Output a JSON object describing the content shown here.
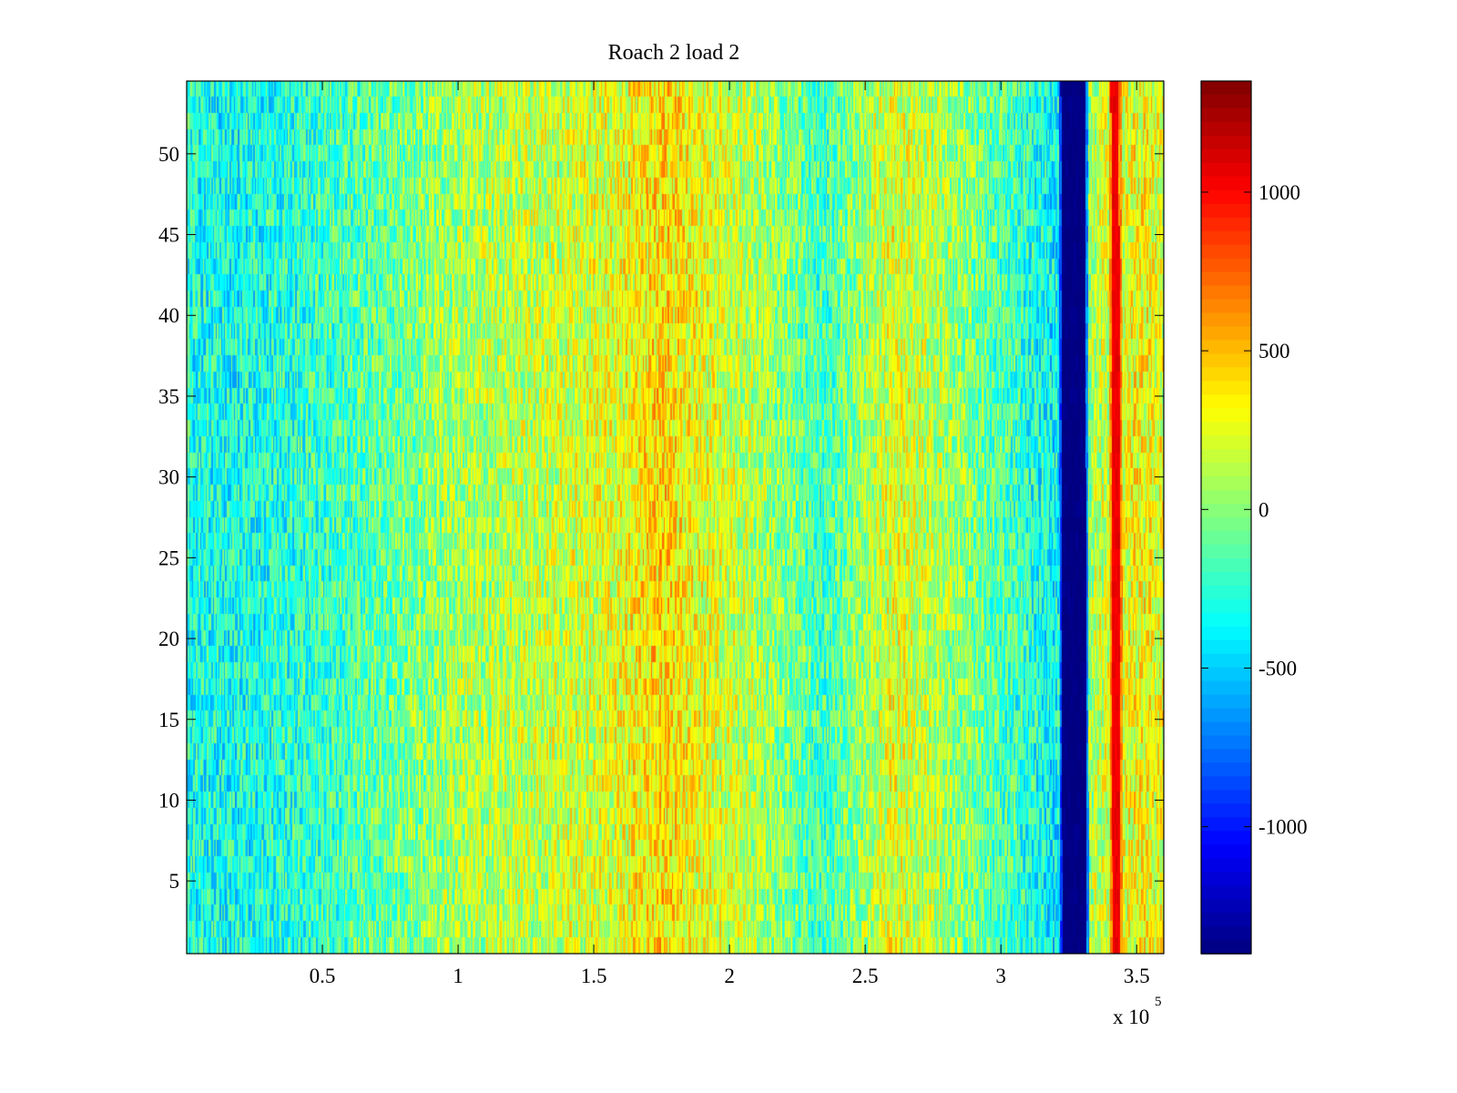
{
  "chart_data": {
    "type": "heatmap",
    "title": "Roach 2 load 2",
    "xlabel": "",
    "ylabel": "",
    "x_exponent_label": "x 10",
    "x_exponent_power": "5",
    "xlim": [
      0,
      3.6
    ],
    "ylim": [
      0.5,
      54.5
    ],
    "x_ticks": [
      0.5,
      1,
      1.5,
      2,
      2.5,
      3,
      3.5
    ],
    "x_tick_labels": [
      "0.5",
      "1",
      "1.5",
      "2",
      "2.5",
      "3",
      "3.5"
    ],
    "y_ticks": [
      5,
      10,
      15,
      20,
      25,
      30,
      35,
      40,
      45,
      50
    ],
    "y_tick_labels": [
      "5",
      "10",
      "15",
      "20",
      "25",
      "30",
      "35",
      "40",
      "45",
      "50"
    ],
    "rows": 54,
    "colormap": "jet",
    "clim": [
      -1400,
      1350
    ],
    "colorbar_ticks": [
      1000,
      500,
      0,
      -500,
      -1000
    ],
    "colorbar_tick_labels": [
      "1000",
      "500",
      "0",
      "-500",
      "-1000"
    ],
    "features": [
      {
        "x_center": 3.27,
        "width": 0.09,
        "value": -1400
      },
      {
        "x_center": 3.425,
        "width": 0.03,
        "value": 1050
      }
    ],
    "profile_x": [
      0,
      0.2,
      0.5,
      0.8,
      1.0,
      1.3,
      1.6,
      1.75,
      1.9,
      2.1,
      2.35,
      2.6,
      2.8,
      3.0,
      3.2,
      3.36,
      3.5,
      3.6
    ],
    "profile_value": [
      -300,
      -330,
      -220,
      -60,
      80,
      150,
      250,
      420,
      260,
      110,
      -200,
      250,
      80,
      -150,
      -380,
      150,
      300,
      250
    ],
    "noise_amplitude": 330,
    "grid": false
  }
}
